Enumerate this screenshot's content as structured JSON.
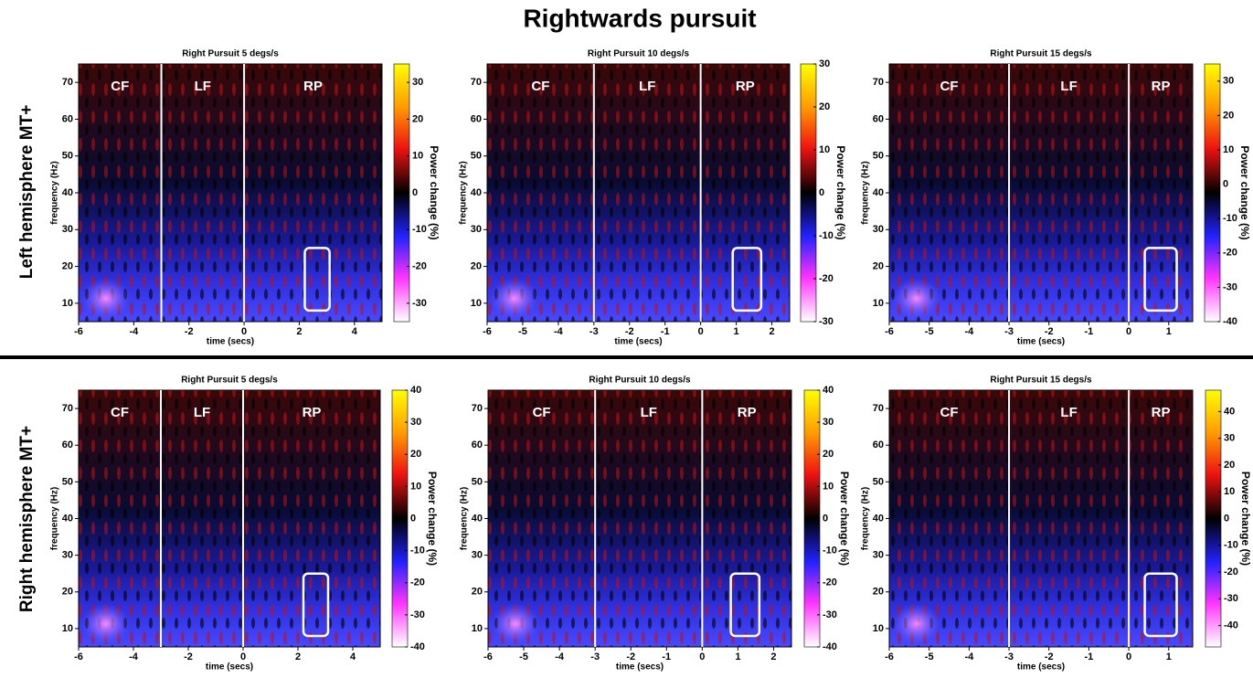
{
  "title": "Rightwards pursuit",
  "row_labels": [
    "Left hemisphere MT+",
    "Right hemisphere MT+"
  ],
  "chart_data": [
    {
      "type": "heatmap",
      "title": "Right Pursuit 5 degs/s",
      "xlabel": "time (secs)",
      "ylabel": "frequency (Hz)",
      "xlim": [
        -6,
        5
      ],
      "xticks": [
        -6,
        -4,
        -2,
        0,
        2,
        4
      ],
      "ylim": [
        5,
        75
      ],
      "yticks": [
        10,
        20,
        30,
        40,
        50,
        60,
        70
      ],
      "event_lines": [
        -3,
        0
      ],
      "annotations": [
        "CF",
        "LF",
        "RP"
      ],
      "highlight": {
        "x": [
          2.2,
          3.1
        ],
        "y": [
          8,
          25
        ]
      },
      "colorbar": {
        "label": "Power change (%)",
        "clim": [
          -35,
          35
        ],
        "ticks": [
          -30,
          -20,
          -10,
          0,
          10,
          20,
          30
        ]
      }
    },
    {
      "type": "heatmap",
      "title": "Right Pursuit 10 degs/s",
      "xlabel": "time (secs)",
      "ylabel": "frequency (Hz)",
      "xlim": [
        -6,
        2.5
      ],
      "xticks": [
        -6,
        -5,
        -4,
        -3,
        -2,
        -1,
        0,
        1,
        2
      ],
      "ylim": [
        5,
        75
      ],
      "yticks": [
        10,
        20,
        30,
        40,
        50,
        60,
        70
      ],
      "event_lines": [
        -3,
        0
      ],
      "annotations": [
        "CF",
        "LF",
        "RP"
      ],
      "highlight": {
        "x": [
          0.9,
          1.7
        ],
        "y": [
          8,
          25
        ]
      },
      "colorbar": {
        "label": "Power change (%)",
        "clim": [
          -30,
          30
        ],
        "ticks": [
          -30,
          -20,
          -10,
          0,
          10,
          20,
          30
        ]
      }
    },
    {
      "type": "heatmap",
      "title": "Right Pursuit 15 degs/s",
      "xlabel": "time (secs)",
      "ylabel": "frequency (Hz)",
      "xlim": [
        -6,
        1.6
      ],
      "xticks": [
        -6,
        -5,
        -4,
        -3,
        -2,
        -1,
        0,
        1
      ],
      "ylim": [
        5,
        75
      ],
      "yticks": [
        10,
        20,
        30,
        40,
        50,
        60,
        70
      ],
      "event_lines": [
        -3,
        0
      ],
      "annotations": [
        "CF",
        "LF",
        "RP"
      ],
      "highlight": {
        "x": [
          0.4,
          1.2
        ],
        "y": [
          8,
          25
        ]
      },
      "colorbar": {
        "label": "Power change (%)",
        "clim": [
          -40,
          35
        ],
        "ticks": [
          -40,
          -30,
          -20,
          -10,
          0,
          10,
          20,
          30
        ]
      }
    },
    {
      "type": "heatmap",
      "title": "Right Pursuit 5 degs/s",
      "xlabel": "time (secs)",
      "ylabel": "frequency (Hz)",
      "xlim": [
        -6,
        5
      ],
      "xticks": [
        -6,
        -4,
        -2,
        0,
        2,
        4
      ],
      "ylim": [
        5,
        75
      ],
      "yticks": [
        10,
        20,
        30,
        40,
        50,
        60,
        70
      ],
      "event_lines": [
        -3,
        0
      ],
      "annotations": [
        "CF",
        "LF",
        "RP"
      ],
      "highlight": {
        "x": [
          2.2,
          3.1
        ],
        "y": [
          8,
          25
        ]
      },
      "colorbar": {
        "label": "Power change (%)",
        "clim": [
          -40,
          40
        ],
        "ticks": [
          -40,
          -30,
          -20,
          -10,
          0,
          10,
          20,
          30,
          40
        ]
      }
    },
    {
      "type": "heatmap",
      "title": "Right Pursuit 10 degs/s",
      "xlabel": "time (secs)",
      "ylabel": "frequency (Hz)",
      "xlim": [
        -6,
        2.5
      ],
      "xticks": [
        -6,
        -5,
        -4,
        -3,
        -2,
        -1,
        0,
        1,
        2
      ],
      "ylim": [
        5,
        75
      ],
      "yticks": [
        10,
        20,
        30,
        40,
        50,
        60,
        70
      ],
      "event_lines": [
        -3,
        0
      ],
      "annotations": [
        "CF",
        "LF",
        "RP"
      ],
      "highlight": {
        "x": [
          0.8,
          1.6
        ],
        "y": [
          8,
          25
        ]
      },
      "colorbar": {
        "label": "Power change (%)",
        "clim": [
          -40,
          40
        ],
        "ticks": [
          -40,
          -30,
          -20,
          -10,
          0,
          10,
          20,
          30,
          40
        ]
      }
    },
    {
      "type": "heatmap",
      "title": "Right Pursuit 15 degs/s",
      "xlabel": "time (secs)",
      "ylabel": "frequency (Hz)",
      "xlim": [
        -6,
        1.6
      ],
      "xticks": [
        -6,
        -5,
        -4,
        -3,
        -2,
        -1,
        0,
        1
      ],
      "ylim": [
        5,
        75
      ],
      "yticks": [
        10,
        20,
        30,
        40,
        50,
        60,
        70
      ],
      "event_lines": [
        -3,
        0
      ],
      "annotations": [
        "CF",
        "LF",
        "RP"
      ],
      "highlight": {
        "x": [
          0.4,
          1.2
        ],
        "y": [
          8,
          25
        ]
      },
      "colorbar": {
        "label": "Power change (%)",
        "clim": [
          -48,
          48
        ],
        "ticks": [
          -40,
          -30,
          -20,
          -10,
          0,
          10,
          20,
          30,
          40
        ]
      }
    }
  ]
}
